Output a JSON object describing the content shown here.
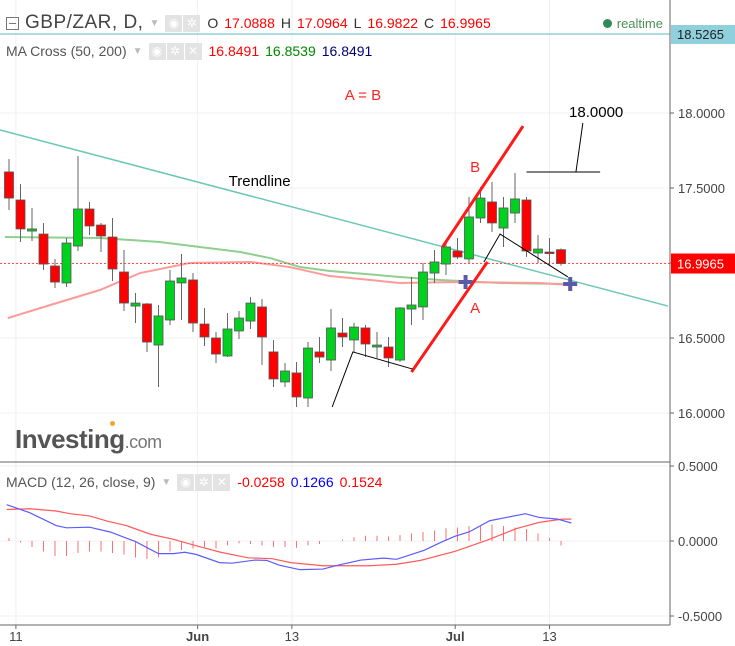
{
  "header": {
    "symbol": "GBP/ZAR, D,",
    "o_label": "O",
    "o": "17.0888",
    "h_label": "H",
    "h": "17.0964",
    "l_label": "L",
    "l": "16.9822",
    "c_label": "C",
    "c": "16.9965",
    "status": "realtime"
  },
  "ma": {
    "label": "MA Cross (50, 200)",
    "v1": "16.8491",
    "v2": "16.8539",
    "v3": "16.8491"
  },
  "macd": {
    "label": "MACD (12, 26, close, 9)",
    "hist": "-0.0258",
    "macd": "0.1266",
    "signal": "0.1524"
  },
  "logo": {
    "main": "Investing",
    "suffix": ".com"
  },
  "colors": {
    "up": "#00d01e",
    "down": "#ff0000",
    "ma50": "#8fcf8f",
    "ma200": "#ff9a9a",
    "trend": "#6cc7b5",
    "macd": "#5b5bff",
    "signal": "#ff5a5a",
    "hist": "#ff7070",
    "accent": "#8fd0dc"
  },
  "chart_data": [
    {
      "type": "candlestick",
      "title": "GBP/ZAR, D",
      "ylim": [
        15.75,
        18.55
      ],
      "y_ticks": [
        "18.0000",
        "17.5000",
        "17.0000",
        "16.5000",
        "16.0000"
      ],
      "y_tick_values": [
        18,
        17.5,
        17,
        16.5,
        16
      ],
      "x_ticks": [
        {
          "label": "11",
          "index": 0.6,
          "bold": false
        },
        {
          "label": "Jun",
          "index": 16.4,
          "bold": true
        },
        {
          "label": "13",
          "index": 24.6,
          "bold": false
        },
        {
          "label": "Jul",
          "index": 38.8,
          "bold": true
        },
        {
          "label": "13",
          "index": 47.0,
          "bold": false
        }
      ],
      "last_price": "16.9965",
      "last_value": 16.9965,
      "crosshair_price": "18.5265",
      "crosshair_value": 18.5265,
      "ohlc": [
        [
          17.607,
          17.433,
          17.693,
          17.353
        ],
        [
          17.42,
          17.227,
          17.527,
          17.14
        ],
        [
          17.213,
          17.227,
          17.367,
          17.147
        ],
        [
          17.193,
          16.993,
          17.267,
          16.953
        ],
        [
          16.98,
          16.873,
          17.027,
          16.833
        ],
        [
          16.867,
          17.133,
          17.167,
          16.84
        ],
        [
          17.113,
          17.36,
          17.713,
          17.08
        ],
        [
          17.36,
          17.247,
          17.407,
          17.187
        ],
        [
          17.253,
          17.18,
          17.267,
          17.073
        ],
        [
          17.173,
          16.96,
          17.3,
          16.88
        ],
        [
          16.94,
          16.733,
          17.087,
          16.68
        ],
        [
          16.713,
          16.733,
          16.8,
          16.6
        ],
        [
          16.727,
          16.473,
          16.733,
          16.407
        ],
        [
          16.453,
          16.647,
          16.72,
          16.173
        ],
        [
          16.62,
          16.88,
          16.953,
          16.587
        ],
        [
          16.867,
          16.9,
          17.06,
          16.62
        ],
        [
          16.887,
          16.6,
          16.933,
          16.54
        ],
        [
          16.593,
          16.507,
          16.7,
          16.447
        ],
        [
          16.5,
          16.393,
          16.54,
          16.333
        ],
        [
          16.38,
          16.56,
          16.667,
          16.373
        ],
        [
          16.547,
          16.633,
          16.68,
          16.493
        ],
        [
          16.613,
          16.733,
          16.773,
          16.56
        ],
        [
          16.707,
          16.507,
          16.76,
          16.32
        ],
        [
          16.407,
          16.227,
          16.487,
          16.173
        ],
        [
          16.207,
          16.28,
          16.333,
          16.173
        ],
        [
          16.267,
          16.107,
          16.34,
          16.04
        ],
        [
          16.1,
          16.433,
          16.473,
          16.04
        ],
        [
          16.407,
          16.373,
          16.507,
          16.333
        ],
        [
          16.353,
          16.567,
          16.693,
          16.28
        ],
        [
          16.533,
          16.507,
          16.633,
          16.44
        ],
        [
          16.487,
          16.573,
          16.6,
          16.407
        ],
        [
          16.567,
          16.46,
          16.587,
          16.373
        ],
        [
          16.44,
          16.453,
          16.54,
          16.367
        ],
        [
          16.44,
          16.367,
          16.507,
          16.307
        ],
        [
          16.353,
          16.7,
          16.707,
          16.34
        ],
        [
          16.693,
          16.72,
          16.907,
          16.587
        ],
        [
          16.707,
          16.94,
          17.0,
          16.62
        ],
        [
          16.933,
          17.007,
          17.087,
          16.867
        ],
        [
          16.993,
          17.107,
          17.14,
          16.92
        ],
        [
          17.08,
          17.04,
          17.167,
          17.027
        ],
        [
          17.027,
          17.307,
          17.44,
          17.0
        ],
        [
          17.3,
          17.433,
          17.507,
          17.267
        ],
        [
          17.407,
          17.267,
          17.54,
          17.207
        ],
        [
          17.233,
          17.367,
          17.44,
          17.107
        ],
        [
          17.333,
          17.427,
          17.6,
          17.267
        ],
        [
          17.42,
          17.08,
          17.44,
          17.04
        ],
        [
          17.067,
          17.093,
          17.187,
          17.0
        ],
        [
          17.073,
          17.067,
          17.167,
          16.98
        ],
        [
          17.0888,
          16.9965,
          17.0964,
          16.9822
        ]
      ],
      "ma50": [
        [
          -0.35,
          17.173
        ],
        [
          7.9,
          17.167
        ],
        [
          13.1,
          17.14
        ],
        [
          16.6,
          17.107
        ],
        [
          20.1,
          17.073
        ],
        [
          22.7,
          17.033
        ],
        [
          25.3,
          16.973
        ],
        [
          27.9,
          16.947
        ],
        [
          34.0,
          16.907
        ],
        [
          37.5,
          16.887
        ],
        [
          42.7,
          16.867
        ],
        [
          48.8,
          16.86
        ]
      ],
      "ma200": [
        [
          -0.1,
          16.633
        ],
        [
          3.6,
          16.72
        ],
        [
          7.9,
          16.82
        ],
        [
          11.4,
          16.933
        ],
        [
          15.7,
          17.0
        ],
        [
          21.0,
          17.007
        ],
        [
          24.4,
          16.973
        ],
        [
          27.9,
          16.913
        ],
        [
          34.0,
          16.867
        ],
        [
          39.2,
          16.873
        ],
        [
          46.2,
          16.867
        ],
        [
          48.8,
          16.853
        ]
      ],
      "drawings": {
        "trendline": [
          [
            -0.78,
            17.887
          ],
          [
            57.3,
            16.713
          ]
        ],
        "leg_a": [
          [
            35.0,
            16.273
          ],
          [
            41.6,
            17.007
          ]
        ],
        "leg_b": [
          [
            37.7,
            17.107
          ],
          [
            44.7,
            17.913
          ]
        ],
        "path1": [
          [
            28.1,
            16.04
          ],
          [
            29.9,
            16.407
          ],
          [
            35.1,
            16.293
          ]
        ],
        "path2": [
          [
            41.3,
            17.007
          ],
          [
            42.7,
            17.193
          ],
          [
            48.6,
            16.907
          ]
        ],
        "bracket": [
          [
            45.0,
            17.607
          ],
          [
            51.4,
            17.607
          ]
        ],
        "bracket_leader": [
          [
            49.3,
            17.607
          ],
          [
            49.9,
            17.933
          ]
        ],
        "crosses": [
          [
            39.7,
            16.873
          ],
          [
            48.8,
            16.86
          ]
        ],
        "labels": [
          {
            "text": "A = B",
            "at": [
              29.2,
              18.087
            ],
            "color": "#ff2222"
          },
          {
            "text": "B",
            "at": [
              40.1,
              17.607
            ],
            "color": "#ff2222"
          },
          {
            "text": "A",
            "at": [
              40.1,
              16.667
            ],
            "color": "#ff2222"
          },
          {
            "text": "Trendline",
            "at": [
              19.1,
              17.513
            ],
            "color": "#000000"
          },
          {
            "text": "18.0000",
            "at": [
              48.7,
              17.973
            ],
            "color": "#000000"
          }
        ]
      }
    },
    {
      "type": "line",
      "title": "MACD (12, 26, close, 9)",
      "ylim": [
        -0.55,
        0.55
      ],
      "y_ticks": [
        "0.5000",
        "0.0000",
        "-0.5000"
      ],
      "y_tick_values": [
        0.5,
        0,
        -0.5
      ],
      "macd": [
        [
          -0.2,
          0.242
        ],
        [
          1.8,
          0.189
        ],
        [
          4.1,
          0.103
        ],
        [
          5.0,
          0.088
        ],
        [
          7.0,
          0.092
        ],
        [
          8.8,
          0.06
        ],
        [
          11.0,
          -0.004
        ],
        [
          13.0,
          -0.084
        ],
        [
          14.3,
          -0.084
        ],
        [
          15.3,
          -0.075
        ],
        [
          16.3,
          -0.09
        ],
        [
          18.3,
          -0.144
        ],
        [
          19.4,
          -0.148
        ],
        [
          21.4,
          -0.127
        ],
        [
          22.4,
          -0.129
        ],
        [
          23.5,
          -0.161
        ],
        [
          25.3,
          -0.191
        ],
        [
          27.3,
          -0.187
        ],
        [
          28.6,
          -0.161
        ],
        [
          30.6,
          -0.127
        ],
        [
          32.6,
          -0.114
        ],
        [
          33.7,
          -0.122
        ],
        [
          36.1,
          -0.062
        ],
        [
          37.7,
          -0.004
        ],
        [
          38.8,
          0.032
        ],
        [
          40.0,
          0.06
        ],
        [
          41.8,
          0.135
        ],
        [
          44.9,
          0.182
        ],
        [
          46.1,
          0.157
        ],
        [
          47.7,
          0.146
        ],
        [
          48.9,
          0.12
        ]
      ],
      "signal": [
        [
          -0.2,
          0.21
        ],
        [
          1.8,
          0.215
        ],
        [
          4.1,
          0.2
        ],
        [
          5.3,
          0.182
        ],
        [
          7.0,
          0.167
        ],
        [
          8.6,
          0.131
        ],
        [
          10.2,
          0.103
        ],
        [
          12.3,
          0.045
        ],
        [
          14.3,
          0.011
        ],
        [
          16.3,
          -0.032
        ],
        [
          18.4,
          -0.075
        ],
        [
          20.8,
          -0.112
        ],
        [
          22.9,
          -0.118
        ],
        [
          24.5,
          -0.144
        ],
        [
          27.3,
          -0.165
        ],
        [
          31.4,
          -0.165
        ],
        [
          33.7,
          -0.155
        ],
        [
          35.8,
          -0.129
        ],
        [
          38.8,
          -0.069
        ],
        [
          41.6,
          0.006
        ],
        [
          44.1,
          0.082
        ],
        [
          46.1,
          0.124
        ],
        [
          48.1,
          0.146
        ],
        [
          48.9,
          0.146
        ]
      ],
      "histogram": [
        0.02,
        -0.01,
        -0.04,
        -0.07,
        -0.1,
        -0.1,
        -0.08,
        -0.07,
        -0.07,
        -0.08,
        -0.09,
        -0.11,
        -0.12,
        -0.11,
        -0.07,
        -0.06,
        -0.05,
        -0.04,
        -0.05,
        -0.03,
        -0.015,
        -0.02,
        -0.03,
        -0.04,
        -0.04,
        -0.045,
        -0.03,
        -0.02,
        0,
        0.01,
        0.025,
        0.035,
        0.035,
        0.03,
        0.04,
        0.05,
        0.06,
        0.07,
        0.085,
        0.09,
        0.1,
        0.1,
        0.11,
        0.1,
        0.09,
        0.08,
        0.05,
        0.02,
        -0.03
      ]
    }
  ]
}
